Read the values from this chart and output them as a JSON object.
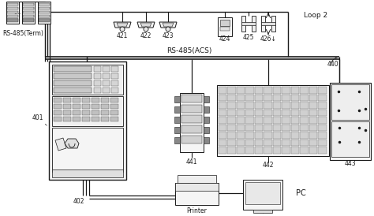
{
  "bg_color": "#ffffff",
  "line_color": "#1a1a1a",
  "labels": {
    "rs485_term": "RS-485(Term)",
    "loop2": "Loop 2",
    "rs485_acs": "RS-485(ACS)",
    "pc": "PC",
    "printer": "Printer",
    "n401": "401",
    "n402": "402",
    "n421": "421",
    "n422": "422",
    "n423": "423",
    "n424": "424",
    "n425": "425",
    "n426": "426↓",
    "n440": "440",
    "n441": "441",
    "n442": "442",
    "n443": "443"
  },
  "figsize": [
    4.74,
    2.74
  ],
  "dpi": 100
}
